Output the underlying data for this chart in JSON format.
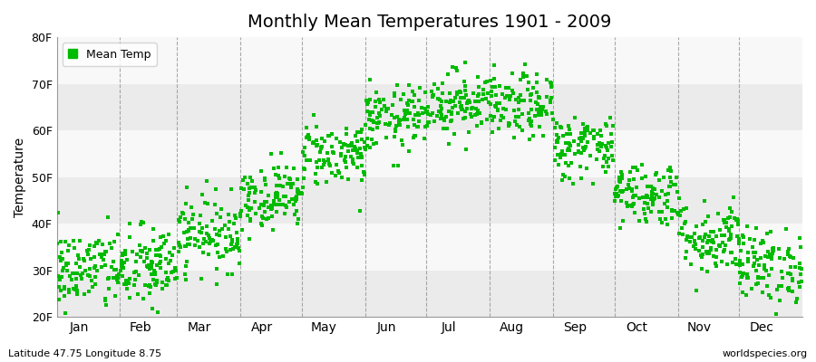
{
  "title": "Monthly Mean Temperatures 1901 - 2009",
  "ylabel": "Temperature",
  "month_labels": [
    "Jan",
    "Feb",
    "Mar",
    "Apr",
    "May",
    "Jun",
    "Jul",
    "Aug",
    "Sep",
    "Oct",
    "Nov",
    "Dec"
  ],
  "month_days": [
    31,
    28,
    31,
    30,
    31,
    30,
    31,
    31,
    30,
    31,
    30,
    31
  ],
  "ylim": [
    20,
    80
  ],
  "yticks": [
    20,
    30,
    40,
    50,
    60,
    70,
    80
  ],
  "ytick_labels": [
    "20F",
    "30F",
    "40F",
    "50F",
    "60F",
    "70F",
    "80F"
  ],
  "legend_label": "Mean Temp",
  "dot_color": "#00bb00",
  "background_color": "#ffffff",
  "band_color_a": "#ebebeb",
  "band_color_b": "#f8f8f8",
  "bottom_left_text": "Latitude 47.75 Longitude 8.75",
  "bottom_right_text": "worldspecies.org",
  "n_years": 109,
  "mean_temps_F": [
    30.0,
    30.5,
    38.0,
    46.0,
    55.0,
    62.5,
    66.0,
    65.0,
    56.5,
    46.5,
    37.0,
    31.0
  ],
  "std_temps_F": [
    4.5,
    4.5,
    4.0,
    3.5,
    3.5,
    3.5,
    3.5,
    3.5,
    3.5,
    3.5,
    4.0,
    4.0
  ],
  "vline_color": "#888888",
  "title_fontsize": 14,
  "axis_fontsize": 9,
  "month_label_fontsize": 10
}
